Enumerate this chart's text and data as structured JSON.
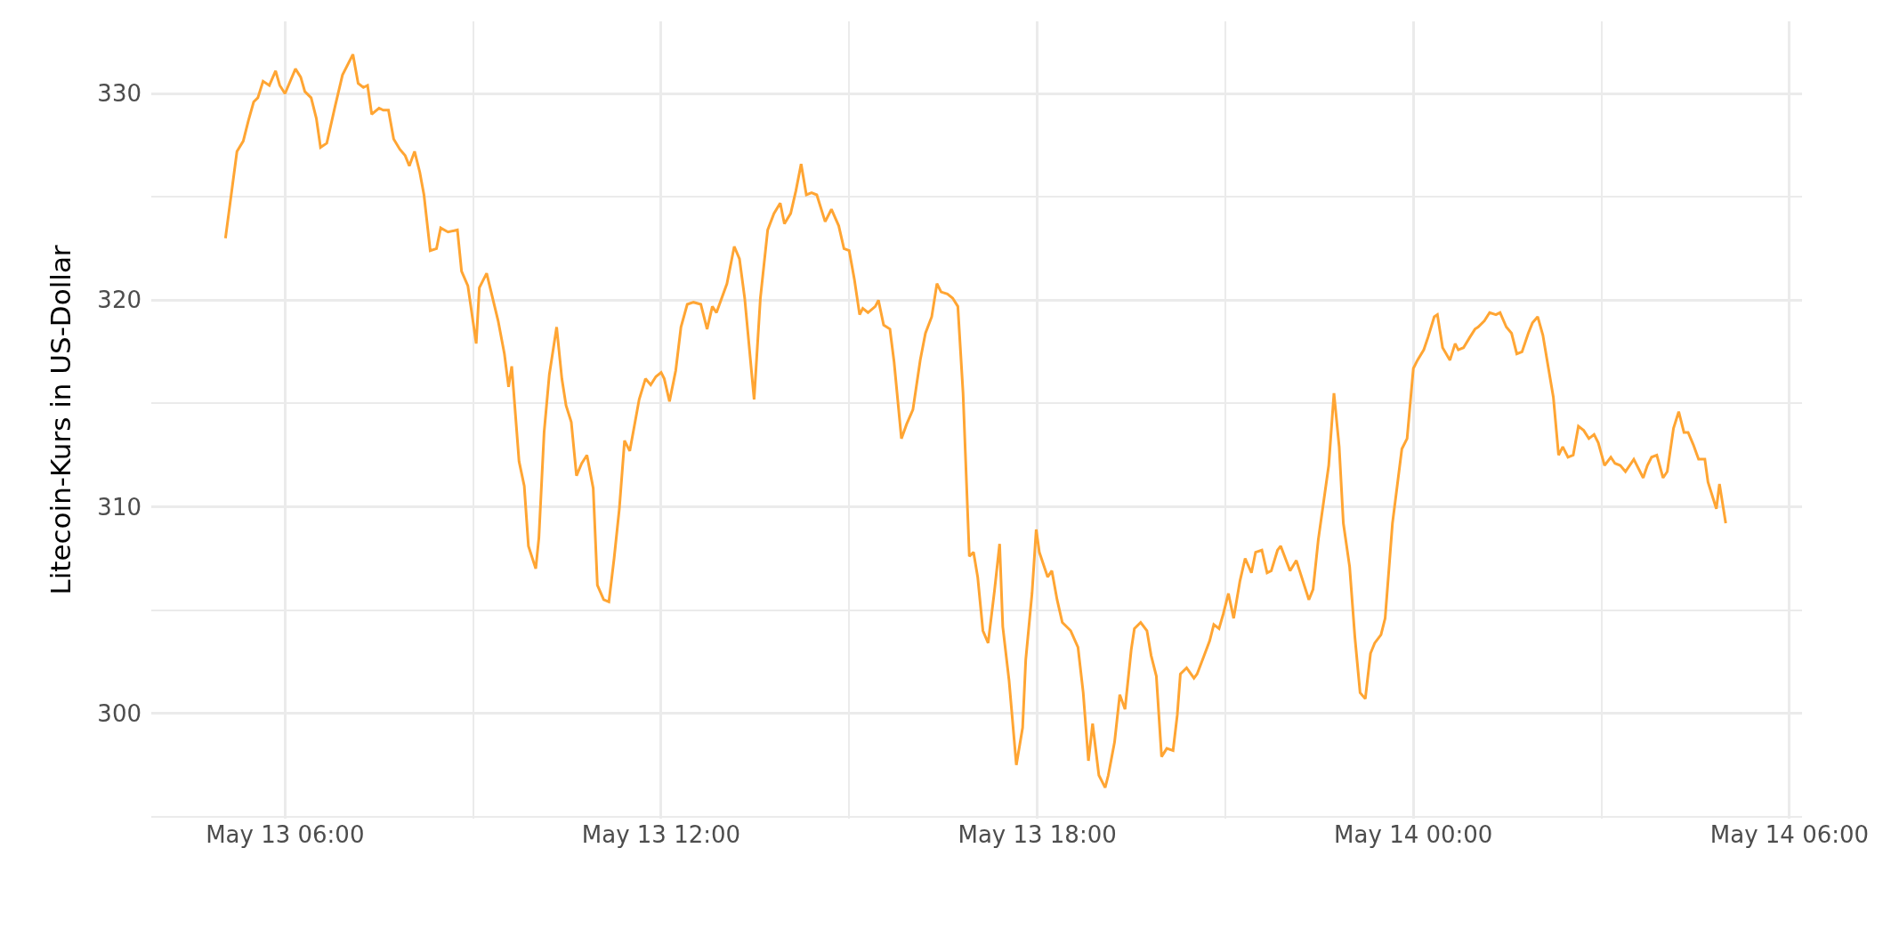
{
  "chart_data": {
    "type": "line",
    "ylabel": "Litecoin-Kurs in US-Dollar",
    "x": [
      "--05-13T05:03",
      "--05-13T05:14",
      "--05-13T05:20",
      "--05-13T05:25",
      "--05-13T05:30",
      "--05-13T05:34",
      "--05-13T05:39",
      "--05-13T05:45",
      "--05-13T05:51",
      "--05-13T05:55",
      "--05-13T06:00",
      "--05-13T06:10",
      "--05-13T06:15",
      "--05-13T06:19",
      "--05-13T06:25",
      "--05-13T06:30",
      "--05-13T06:34",
      "--05-13T06:40",
      "--05-13T06:48",
      "--05-13T06:55",
      "--05-13T07:05",
      "--05-13T07:10",
      "--05-13T07:15",
      "--05-13T07:19",
      "--05-13T07:23",
      "--05-13T07:30",
      "--05-13T07:34",
      "--05-13T07:39",
      "--05-13T07:44",
      "--05-13T07:50",
      "--05-13T07:55",
      "--05-13T07:59",
      "--05-13T08:04",
      "--05-13T08:09",
      "--05-13T08:13",
      "--05-13T08:19",
      "--05-13T08:25",
      "--05-13T08:29",
      "--05-13T08:36",
      "--05-13T08:45",
      "--05-13T08:49",
      "--05-13T08:55",
      "--05-13T09:03",
      "--05-13T09:06",
      "--05-13T09:13",
      "--05-13T09:24",
      "--05-13T09:30",
      "--05-13T09:34",
      "--05-13T09:37",
      "--05-13T09:44",
      "--05-13T09:49",
      "--05-13T09:53",
      "--05-13T10:00",
      "--05-13T10:03",
      "--05-13T10:08",
      "--05-13T10:13",
      "--05-13T10:20",
      "--05-13T10:25",
      "--05-13T10:29",
      "--05-13T10:34",
      "--05-13T10:39",
      "--05-13T10:44",
      "--05-13T10:49",
      "--05-13T10:55",
      "--05-13T10:59",
      "--05-13T11:05",
      "--05-13T11:10",
      "--05-13T11:15",
      "--05-13T11:20",
      "--05-13T11:25",
      "--05-13T11:30",
      "--05-13T11:39",
      "--05-13T11:45",
      "--05-13T11:50",
      "--05-13T11:55",
      "--05-13T12:00",
      "--05-13T12:03",
      "--05-13T12:08",
      "--05-13T12:14",
      "--05-13T12:19",
      "--05-13T12:25",
      "--05-13T12:31",
      "--05-13T12:38",
      "--05-13T12:44",
      "--05-13T12:49",
      "--05-13T12:53",
      "--05-13T13:03",
      "--05-13T13:10",
      "--05-13T13:15",
      "--05-13T13:20",
      "--05-13T13:29",
      "--05-13T13:35",
      "--05-13T13:42",
      "--05-13T13:48",
      "--05-13T13:54",
      "--05-13T13:58",
      "--05-13T14:04",
      "--05-13T14:09",
      "--05-13T14:14",
      "--05-13T14:19",
      "--05-13T14:24",
      "--05-13T14:29",
      "--05-13T14:37",
      "--05-13T14:43",
      "--05-13T14:50",
      "--05-13T14:55",
      "--05-13T15:00",
      "--05-13T15:05",
      "--05-13T15:10",
      "--05-13T15:13",
      "--05-13T15:18",
      "--05-13T15:25",
      "--05-13T15:28",
      "--05-13T15:33",
      "--05-13T15:39",
      "--05-13T15:43",
      "--05-13T15:50",
      "--05-13T15:55",
      "--05-13T16:01",
      "--05-13T16:08",
      "--05-13T16:13",
      "--05-13T16:19",
      "--05-13T16:24",
      "--05-13T16:28",
      "--05-13T16:34",
      "--05-13T16:39",
      "--05-13T16:44",
      "--05-13T16:49",
      "--05-13T16:55",
      "--05-13T16:59",
      "--05-13T17:03",
      "--05-13T17:08",
      "--05-13T17:13",
      "--05-13T17:19",
      "--05-13T17:24",
      "--05-13T17:27",
      "--05-13T17:33",
      "--05-13T17:40",
      "--05-13T17:46",
      "--05-13T17:49",
      "--05-13T17:55",
      "--05-13T17:59",
      "--05-13T18:02",
      "--05-13T18:10",
      "--05-13T18:14",
      "--05-13T18:19",
      "--05-13T18:24",
      "--05-13T18:32",
      "--05-13T18:39",
      "--05-13T18:44",
      "--05-13T18:49",
      "--05-13T18:53",
      "--05-13T18:59",
      "--05-13T19:05",
      "--05-13T19:08",
      "--05-13T19:14",
      "--05-13T19:19",
      "--05-13T19:24",
      "--05-13T19:30",
      "--05-13T19:33",
      "--05-13T19:39",
      "--05-13T19:45",
      "--05-13T19:49",
      "--05-13T19:54",
      "--05-13T19:59",
      "--05-13T20:04",
      "--05-13T20:10",
      "--05-13T20:14",
      "--05-13T20:17",
      "--05-13T20:23",
      "--05-13T20:30",
      "--05-13T20:33",
      "--05-13T20:39",
      "--05-13T20:45",
      "--05-13T20:49",
      "--05-13T20:54",
      "--05-13T20:58",
      "--05-13T21:03",
      "--05-13T21:08",
      "--05-13T21:14",
      "--05-13T21:19",
      "--05-13T21:25",
      "--05-13T21:29",
      "--05-13T21:35",
      "--05-13T21:40",
      "--05-13T21:44",
      "--05-13T21:50",
      "--05-13T21:53",
      "--05-13T22:02",
      "--05-13T22:08",
      "--05-13T22:20",
      "--05-13T22:24",
      "--05-13T22:29",
      "--05-13T22:39",
      "--05-13T22:44",
      "--05-13T22:49",
      "--05-13T22:53",
      "--05-13T22:59",
      "--05-13T23:04",
      "--05-13T23:09",
      "--05-13T23:14",
      "--05-13T23:19",
      "--05-13T23:23",
      "--05-13T23:29",
      "--05-13T23:33",
      "--05-13T23:40",
      "--05-13T23:49",
      "--05-13T23:54",
      "--05-14T00:00",
      "--05-14T00:04",
      "--05-14T00:10",
      "--05-14T00:14",
      "--05-14T00:20",
      "--05-14T00:23",
      "--05-14T00:28",
      "--05-14T00:35",
      "--05-14T00:40",
      "--05-14T00:43",
      "--05-14T00:48",
      "--05-14T00:54",
      "--05-14T00:59",
      "--05-14T01:02",
      "--05-14T01:08",
      "--05-14T01:13",
      "--05-14T01:19",
      "--05-14T01:23",
      "--05-14T01:29",
      "--05-14T01:34",
      "--05-14T01:39",
      "--05-14T01:44",
      "--05-14T01:50",
      "--05-14T01:54",
      "--05-14T01:59",
      "--05-14T02:04",
      "--05-14T02:09",
      "--05-14T02:14",
      "--05-14T02:19",
      "--05-14T02:23",
      "--05-14T02:28",
      "--05-14T02:33",
      "--05-14T02:38",
      "--05-14T02:43",
      "--05-14T02:48",
      "--05-14T02:53",
      "--05-14T02:57",
      "--05-14T03:03",
      "--05-14T03:09",
      "--05-14T03:13",
      "--05-14T03:18",
      "--05-14T03:23",
      "--05-14T03:31",
      "--05-14T03:40",
      "--05-14T03:44",
      "--05-14T03:48",
      "--05-14T03:53",
      "--05-14T03:59",
      "--05-14T04:03",
      "--05-14T04:09",
      "--05-14T04:14",
      "--05-14T04:19",
      "--05-14T04:23",
      "--05-14T04:28",
      "--05-14T04:33",
      "--05-14T04:39",
      "--05-14T04:42",
      "--05-14T04:50",
      "--05-14T04:53",
      "--05-14T04:59"
    ],
    "series": [
      {
        "color": "#ffa533",
        "values": [
          323.0,
          327.2,
          327.7,
          328.7,
          329.6,
          329.8,
          330.6,
          330.4,
          331.1,
          330.4,
          330.0,
          331.2,
          330.8,
          330.1,
          329.8,
          328.8,
          327.4,
          327.6,
          329.4,
          330.9,
          331.9,
          330.5,
          330.3,
          330.4,
          329.0,
          329.3,
          329.2,
          329.2,
          327.8,
          327.3,
          327.0,
          326.5,
          327.2,
          326.2,
          325.1,
          322.4,
          322.5,
          323.5,
          323.3,
          323.4,
          321.4,
          320.7,
          317.9,
          320.6,
          321.3,
          319.0,
          317.4,
          315.8,
          316.8,
          312.2,
          311.0,
          308.1,
          307.0,
          308.5,
          313.6,
          316.4,
          318.7,
          316.2,
          314.9,
          314.1,
          311.5,
          312.1,
          312.5,
          310.9,
          306.2,
          305.5,
          305.4,
          307.5,
          309.9,
          313.2,
          312.7,
          315.2,
          316.2,
          315.9,
          316.3,
          316.5,
          316.2,
          315.1,
          316.6,
          318.7,
          319.8,
          319.9,
          319.8,
          318.6,
          319.7,
          319.4,
          320.8,
          322.6,
          322.0,
          320.1,
          315.2,
          320.1,
          323.4,
          324.2,
          324.7,
          323.7,
          324.2,
          325.3,
          326.6,
          325.1,
          325.2,
          325.1,
          323.8,
          324.4,
          323.6,
          322.5,
          322.4,
          321.0,
          319.3,
          319.6,
          319.4,
          319.7,
          320.0,
          318.8,
          318.6,
          317.0,
          313.3,
          314.0,
          314.7,
          317.1,
          318.4,
          319.2,
          320.8,
          320.4,
          320.3,
          320.1,
          319.7,
          315.5,
          307.6,
          307.8,
          306.6,
          304.0,
          303.4,
          305.9,
          308.2,
          304.2,
          301.6,
          297.5,
          299.3,
          302.6,
          305.8,
          308.9,
          307.8,
          306.6,
          306.9,
          305.5,
          304.4,
          304.0,
          303.2,
          301.0,
          297.7,
          299.5,
          297.0,
          296.4,
          297.0,
          298.6,
          300.9,
          300.2,
          303.1,
          304.1,
          304.4,
          304.0,
          302.8,
          301.8,
          297.9,
          298.3,
          298.2,
          299.9,
          301.9,
          302.2,
          301.7,
          301.9,
          302.7,
          303.5,
          304.3,
          304.1,
          304.8,
          305.8,
          304.6,
          306.4,
          307.5,
          306.8,
          307.8,
          307.9,
          306.8,
          306.9,
          307.9,
          308.1,
          306.9,
          307.4,
          305.5,
          306.0,
          308.4,
          312.0,
          315.5,
          312.9,
          309.2,
          307.1,
          303.7,
          301.0,
          300.7,
          302.9,
          303.4,
          303.8,
          304.6,
          309.2,
          312.8,
          313.3,
          316.7,
          317.1,
          317.6,
          318.2,
          319.2,
          319.3,
          317.7,
          317.1,
          317.9,
          317.6,
          317.7,
          318.2,
          318.6,
          318.7,
          319.0,
          319.4,
          319.3,
          319.4,
          318.7,
          318.4,
          317.4,
          317.5,
          318.4,
          318.9,
          319.2,
          318.3,
          316.8,
          315.3,
          312.5,
          312.9,
          312.4,
          312.5,
          313.9,
          313.7,
          313.3,
          313.5,
          313.1,
          312.0,
          312.4,
          312.1,
          312.0,
          311.7,
          312.3,
          311.4,
          312.0,
          312.4,
          312.5,
          311.4,
          311.7,
          313.8,
          314.6,
          313.6,
          313.6,
          313.0,
          312.3,
          312.3,
          311.2,
          309.9,
          311.1,
          309.2
        ]
      }
    ],
    "xlim": [
      "--05-13T03:52",
      "--05-14T06:12"
    ],
    "xticks": [
      {
        "value": "--05-13T06:00",
        "label": "May 13 06:00"
      },
      {
        "value": "--05-13T09:00",
        "label": null
      },
      {
        "value": "--05-13T12:00",
        "label": "May 13 12:00"
      },
      {
        "value": "--05-13T15:00",
        "label": null
      },
      {
        "value": "--05-13T18:00",
        "label": "May 13 18:00"
      },
      {
        "value": "--05-13T21:00",
        "label": null
      },
      {
        "value": "--05-14T00:00",
        "label": "May 14 00:00"
      },
      {
        "value": "--05-14T03:00",
        "label": null
      },
      {
        "value": "--05-14T06:00",
        "label": "May 14 06:00"
      }
    ],
    "ylim": [
      294.9,
      333.5
    ],
    "yticks": [
      {
        "value": 295,
        "label": null
      },
      300,
      {
        "value": 305,
        "label": null
      },
      310,
      {
        "value": 315,
        "label": null
      },
      320,
      {
        "value": 325,
        "label": null
      },
      330
    ],
    "grid": true,
    "marker": "none",
    "line_style": "solid"
  }
}
